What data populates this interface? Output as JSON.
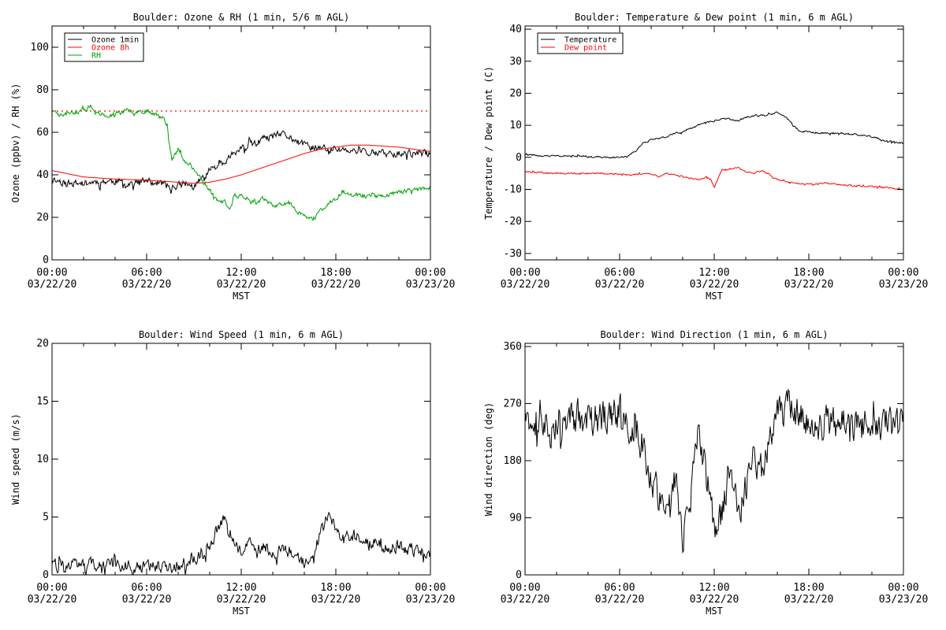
{
  "chart_data": [
    {
      "type": "line",
      "title": "Boulder: Ozone & RH (1 min, 5/6 m AGL)",
      "xlabel": "MST",
      "ylabel": "Ozone (ppbv) / RH (%)",
      "ylim": [
        0,
        110
      ],
      "yticks": [
        0,
        20,
        40,
        60,
        80,
        100
      ],
      "x_tick_labels": [
        [
          "00:00",
          "03/22/20"
        ],
        [
          "06:00",
          "03/22/20"
        ],
        [
          "12:00",
          "03/22/20"
        ],
        [
          "18:00",
          "03/22/20"
        ],
        [
          "00:00",
          "03/23/20"
        ]
      ],
      "legend": "top-left",
      "reference_line": {
        "y": 70,
        "style": "dotted",
        "color": "#ff0000"
      },
      "series": [
        {
          "name": "Ozone 1min",
          "color": "#000000",
          "noise": 2.5,
          "seed": 11,
          "x": [
            0,
            1,
            2,
            3,
            4,
            5,
            6,
            7,
            7.5,
            8,
            8.5,
            9,
            9.5,
            10,
            10.5,
            11,
            11.5,
            12,
            12.5,
            13,
            13.5,
            14,
            14.5,
            15,
            15.5,
            16,
            16.5,
            17,
            18,
            19,
            20,
            21,
            22,
            23,
            24
          ],
          "y": [
            38,
            36,
            36,
            37,
            37,
            36,
            37,
            36,
            34,
            35,
            36,
            34,
            38,
            42,
            46,
            47,
            50,
            52,
            54,
            55,
            57,
            58,
            59,
            58,
            56,
            54,
            53,
            52,
            52,
            51,
            51,
            50,
            50,
            50,
            50
          ]
        },
        {
          "name": "Ozone 8h",
          "color": "#ff0000",
          "noise": 0,
          "seed": 0,
          "x": [
            0,
            2,
            4,
            6,
            8,
            9,
            10,
            11,
            12,
            13,
            14,
            15,
            16,
            17,
            18,
            19,
            20,
            21,
            22,
            23,
            24
          ],
          "y": [
            42,
            39,
            38,
            37.5,
            36.5,
            36,
            36.5,
            38,
            40,
            42.5,
            45,
            47.5,
            50,
            52,
            53,
            54,
            54,
            53.5,
            53,
            52,
            51
          ]
        },
        {
          "name": "RH",
          "color": "#00a000",
          "noise": 1.5,
          "seed": 23,
          "x": [
            0,
            0.5,
            1,
            2,
            2.5,
            3,
            3.5,
            4,
            5,
            6,
            6.5,
            7,
            7.3,
            7.6,
            8,
            8.5,
            9,
            9.5,
            10,
            10.5,
            11,
            11.3,
            11.6,
            12,
            12.5,
            13,
            13.5,
            14,
            14.5,
            15,
            15.5,
            16,
            16.3,
            16.7,
            17,
            17.5,
            18,
            18.5,
            19,
            20,
            21,
            22,
            23,
            24
          ],
          "y": [
            70,
            68,
            69,
            70,
            71,
            68,
            67,
            69,
            70,
            70,
            69,
            67,
            62,
            47,
            52,
            46,
            42,
            38,
            33,
            28,
            27,
            24,
            30,
            30,
            29,
            27,
            29,
            25,
            26,
            27,
            23,
            21,
            19,
            20,
            23,
            26,
            29,
            32,
            31,
            30,
            30,
            32,
            33,
            34
          ]
        }
      ]
    },
    {
      "type": "line",
      "title": "Boulder: Temperature & Dew point (1 min, 6 m AGL)",
      "xlabel": "MST",
      "ylabel": "Temperature / Dew point (C)",
      "ylim": [
        -32,
        41
      ],
      "yticks": [
        -30,
        -20,
        -10,
        0,
        10,
        20,
        30,
        40
      ],
      "x_tick_labels": [
        [
          "00:00",
          "03/22/20"
        ],
        [
          "06:00",
          "03/22/20"
        ],
        [
          "12:00",
          "03/22/20"
        ],
        [
          "18:00",
          "03/22/20"
        ],
        [
          "00:00",
          "03/23/20"
        ]
      ],
      "legend": "top-left",
      "series": [
        {
          "name": "Temperature",
          "color": "#000000",
          "noise": 0.4,
          "seed": 31,
          "x": [
            0,
            1,
            2,
            3,
            4,
            5,
            6,
            6.5,
            7,
            7.5,
            8,
            8.5,
            9,
            9.5,
            10,
            10.5,
            11,
            11.5,
            12,
            12.5,
            13,
            13.5,
            14,
            14.5,
            15,
            15.5,
            16,
            16.5,
            17,
            17.5,
            18,
            19,
            20,
            21,
            22,
            23,
            24
          ],
          "y": [
            0.8,
            0.5,
            0.3,
            0.5,
            0.2,
            0,
            0,
            0.5,
            2,
            4.5,
            5.5,
            6,
            6.5,
            7.5,
            8,
            9,
            10,
            11,
            11.5,
            12,
            12,
            11.5,
            12.5,
            13,
            13,
            13.5,
            14,
            13,
            10,
            8,
            8,
            7.5,
            7.5,
            7,
            6.5,
            5,
            4.5
          ]
        },
        {
          "name": "Dew point",
          "color": "#ff0000",
          "noise": 0.35,
          "seed": 47,
          "x": [
            0,
            1,
            2,
            3,
            4,
            5,
            6,
            6.5,
            7,
            7.5,
            8,
            8.5,
            9,
            9.5,
            10,
            10.5,
            11,
            11.5,
            11.8,
            12,
            12.5,
            13,
            13.5,
            14,
            14.5,
            15,
            15.5,
            16,
            17,
            18,
            19,
            20,
            21,
            22,
            23,
            24
          ],
          "y": [
            -4.5,
            -4.8,
            -5,
            -5,
            -5,
            -5,
            -5.2,
            -5.5,
            -5.3,
            -5,
            -5,
            -6,
            -5,
            -5.5,
            -6,
            -6.5,
            -7,
            -6,
            -7,
            -9.5,
            -4,
            -3.5,
            -3,
            -4.5,
            -5,
            -4,
            -5.5,
            -7,
            -8,
            -8.5,
            -8,
            -8.5,
            -9,
            -9,
            -9.5,
            -10
          ]
        }
      ]
    },
    {
      "type": "line",
      "title": "Boulder: Wind Speed (1 min, 6 m AGL)",
      "xlabel": "MST",
      "ylabel": "Wind speed (m/s)",
      "ylim": [
        0,
        20
      ],
      "yticks": [
        0,
        5,
        10,
        15,
        20
      ],
      "x_tick_labels": [
        [
          "00:00",
          "03/22/20"
        ],
        [
          "06:00",
          "03/22/20"
        ],
        [
          "12:00",
          "03/22/20"
        ],
        [
          "18:00",
          "03/22/20"
        ],
        [
          "00:00",
          "03/23/20"
        ]
      ],
      "series": [
        {
          "name": "",
          "color": "#000000",
          "noise": 0.8,
          "seed": 59,
          "clip_min": 0,
          "x": [
            0,
            1,
            2,
            3,
            4,
            5,
            6,
            7,
            8,
            8.5,
            9,
            9.5,
            10,
            10.5,
            11,
            11.5,
            12,
            12.5,
            13,
            13.5,
            14,
            14.5,
            15,
            15.5,
            16,
            16.5,
            17,
            17.5,
            18,
            18.5,
            19,
            20,
            21,
            22,
            23,
            24
          ],
          "y": [
            0.8,
            0.9,
            1,
            0.9,
            0.8,
            0.7,
            0.8,
            0.8,
            0.7,
            1,
            1.5,
            1.5,
            2.5,
            4,
            5,
            3,
            2,
            2.5,
            2.5,
            2.5,
            2,
            2,
            2,
            1.5,
            1,
            1.5,
            3.5,
            5,
            4,
            3,
            3.5,
            3,
            2.5,
            2.5,
            2,
            2
          ]
        }
      ]
    },
    {
      "type": "line",
      "title": "Boulder: Wind Direction (1 min, 6 m AGL)",
      "xlabel": "MST",
      "ylabel": "Wind direction (deg)",
      "ylim": [
        0,
        365
      ],
      "yticks": [
        0,
        90,
        180,
        270,
        360
      ],
      "x_tick_labels": [
        [
          "00:00",
          "03/22/20"
        ],
        [
          "06:00",
          "03/22/20"
        ],
        [
          "12:00",
          "03/22/20"
        ],
        [
          "18:00",
          "03/22/20"
        ],
        [
          "00:00",
          "03/23/20"
        ]
      ],
      "series": [
        {
          "name": "",
          "color": "#000000",
          "noise": 40,
          "seed": 71,
          "clip_min": 0,
          "clip_max": 360,
          "x": [
            0,
            0.5,
            1,
            1.5,
            2,
            2.5,
            3,
            4,
            5,
            6,
            6.5,
            7,
            7.5,
            8,
            8.5,
            9,
            9.5,
            10,
            10.5,
            11,
            11.5,
            12,
            12.5,
            13,
            13.5,
            14,
            14.5,
            15,
            15.5,
            16,
            16.5,
            17,
            17.5,
            18,
            19,
            20,
            21,
            22,
            23,
            24
          ],
          "y": [
            250,
            230,
            260,
            220,
            250,
            240,
            250,
            240,
            250,
            260,
            240,
            230,
            200,
            150,
            130,
            90,
            150,
            60,
            120,
            250,
            150,
            70,
            90,
            180,
            100,
            140,
            200,
            160,
            220,
            250,
            280,
            260,
            250,
            240,
            240,
            240,
            235,
            235,
            240,
            235
          ]
        }
      ]
    }
  ]
}
